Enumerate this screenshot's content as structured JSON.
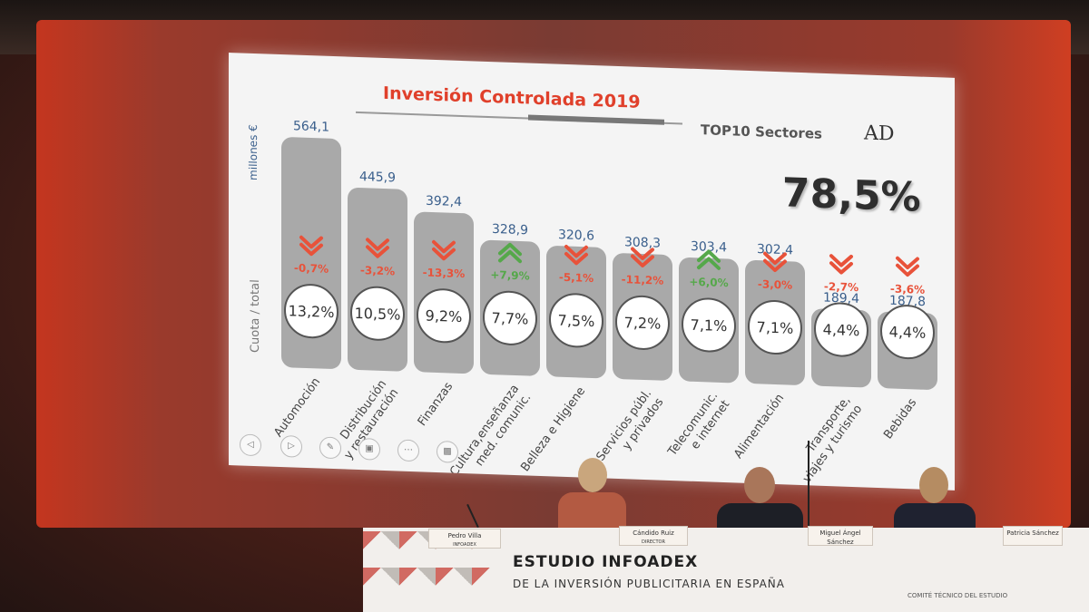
{
  "slide": {
    "title": "Inversión Controlada 2019",
    "subtitle": "TOP10 Sectores",
    "logo": "AD",
    "big_pct": "78,5%",
    "ylabel_top": "millones €",
    "ylabel_bottom": "Cuota / total"
  },
  "chart_data": {
    "type": "bar",
    "title": "Inversión Controlada 2019",
    "ylabel": "millones €",
    "categories": [
      "Automoción",
      "Distribución y restauración",
      "Finanzas",
      "Cultura,enseñanza med. comunic.",
      "Belleza e Higiene",
      "Servicios públ. y privados",
      "Telecomunic. e internet",
      "Alimentación",
      "Transporte, viajes y turismo",
      "Bebidas"
    ],
    "category_lines": [
      [
        "Automoción"
      ],
      [
        "Distribución",
        "y restauración"
      ],
      [
        "Finanzas"
      ],
      [
        "Cultura,enseñanza",
        "med. comunic."
      ],
      [
        "Belleza e Higiene"
      ],
      [
        "Servicios públ.",
        "y privados"
      ],
      [
        "Telecomunic.",
        "e internet"
      ],
      [
        "Alimentación"
      ],
      [
        "Transporte,",
        "viajes y turismo"
      ],
      [
        "Bebidas"
      ]
    ],
    "values": [
      564.1,
      445.9,
      392.4,
      328.9,
      320.6,
      308.3,
      303.4,
      302.4,
      189.4,
      187.8
    ],
    "value_labels": [
      "564,1",
      "445,9",
      "392,4",
      "328,9",
      "320,6",
      "308,3",
      "303,4",
      "302,4",
      "189,4",
      "187,8"
    ],
    "change_labels": [
      "-0,7%",
      "-3,2%",
      "-13,3%",
      "+7,9%",
      "-5,1%",
      "-11,2%",
      "+6,0%",
      "-3,0%",
      "-2,7%",
      "-3,6%"
    ],
    "change_direction": [
      "down",
      "down",
      "down",
      "up",
      "down",
      "down",
      "up",
      "down",
      "down",
      "down"
    ],
    "share_labels": [
      "13,2%",
      "10,5%",
      "9,2%",
      "7,7%",
      "7,5%",
      "7,2%",
      "7,1%",
      "7,1%",
      "4,4%",
      "4,4%"
    ],
    "ylim": [
      0,
      600
    ],
    "colors": {
      "bar": "#a9a9a9",
      "value": "#3a5f8c",
      "down": "#e8523a",
      "up": "#55a84a",
      "circle_fill": "#ffffff",
      "share_text": "#333333"
    }
  },
  "nav_icons": [
    "prev-icon",
    "next-icon",
    "pen-icon",
    "screen-icon",
    "more-icon",
    "presenter-icon"
  ],
  "stage": {
    "banner_title": "ESTUDIO INFOADEX",
    "banner_sub": "DE LA INVERSIÓN PUBLICITARIA EN ESPAÑA",
    "committee": "COMITÉ TÉCNICO DEL ESTUDIO",
    "nameplates": [
      {
        "name": "Pedro Villa",
        "role": "INFOADEX"
      },
      {
        "name": "Cándido Ruiz",
        "role": "DIRECTOR"
      },
      {
        "name": "Miguel Ángel Sánchez",
        "role": ""
      },
      {
        "name": "Patricia Sánchez",
        "role": ""
      }
    ]
  }
}
